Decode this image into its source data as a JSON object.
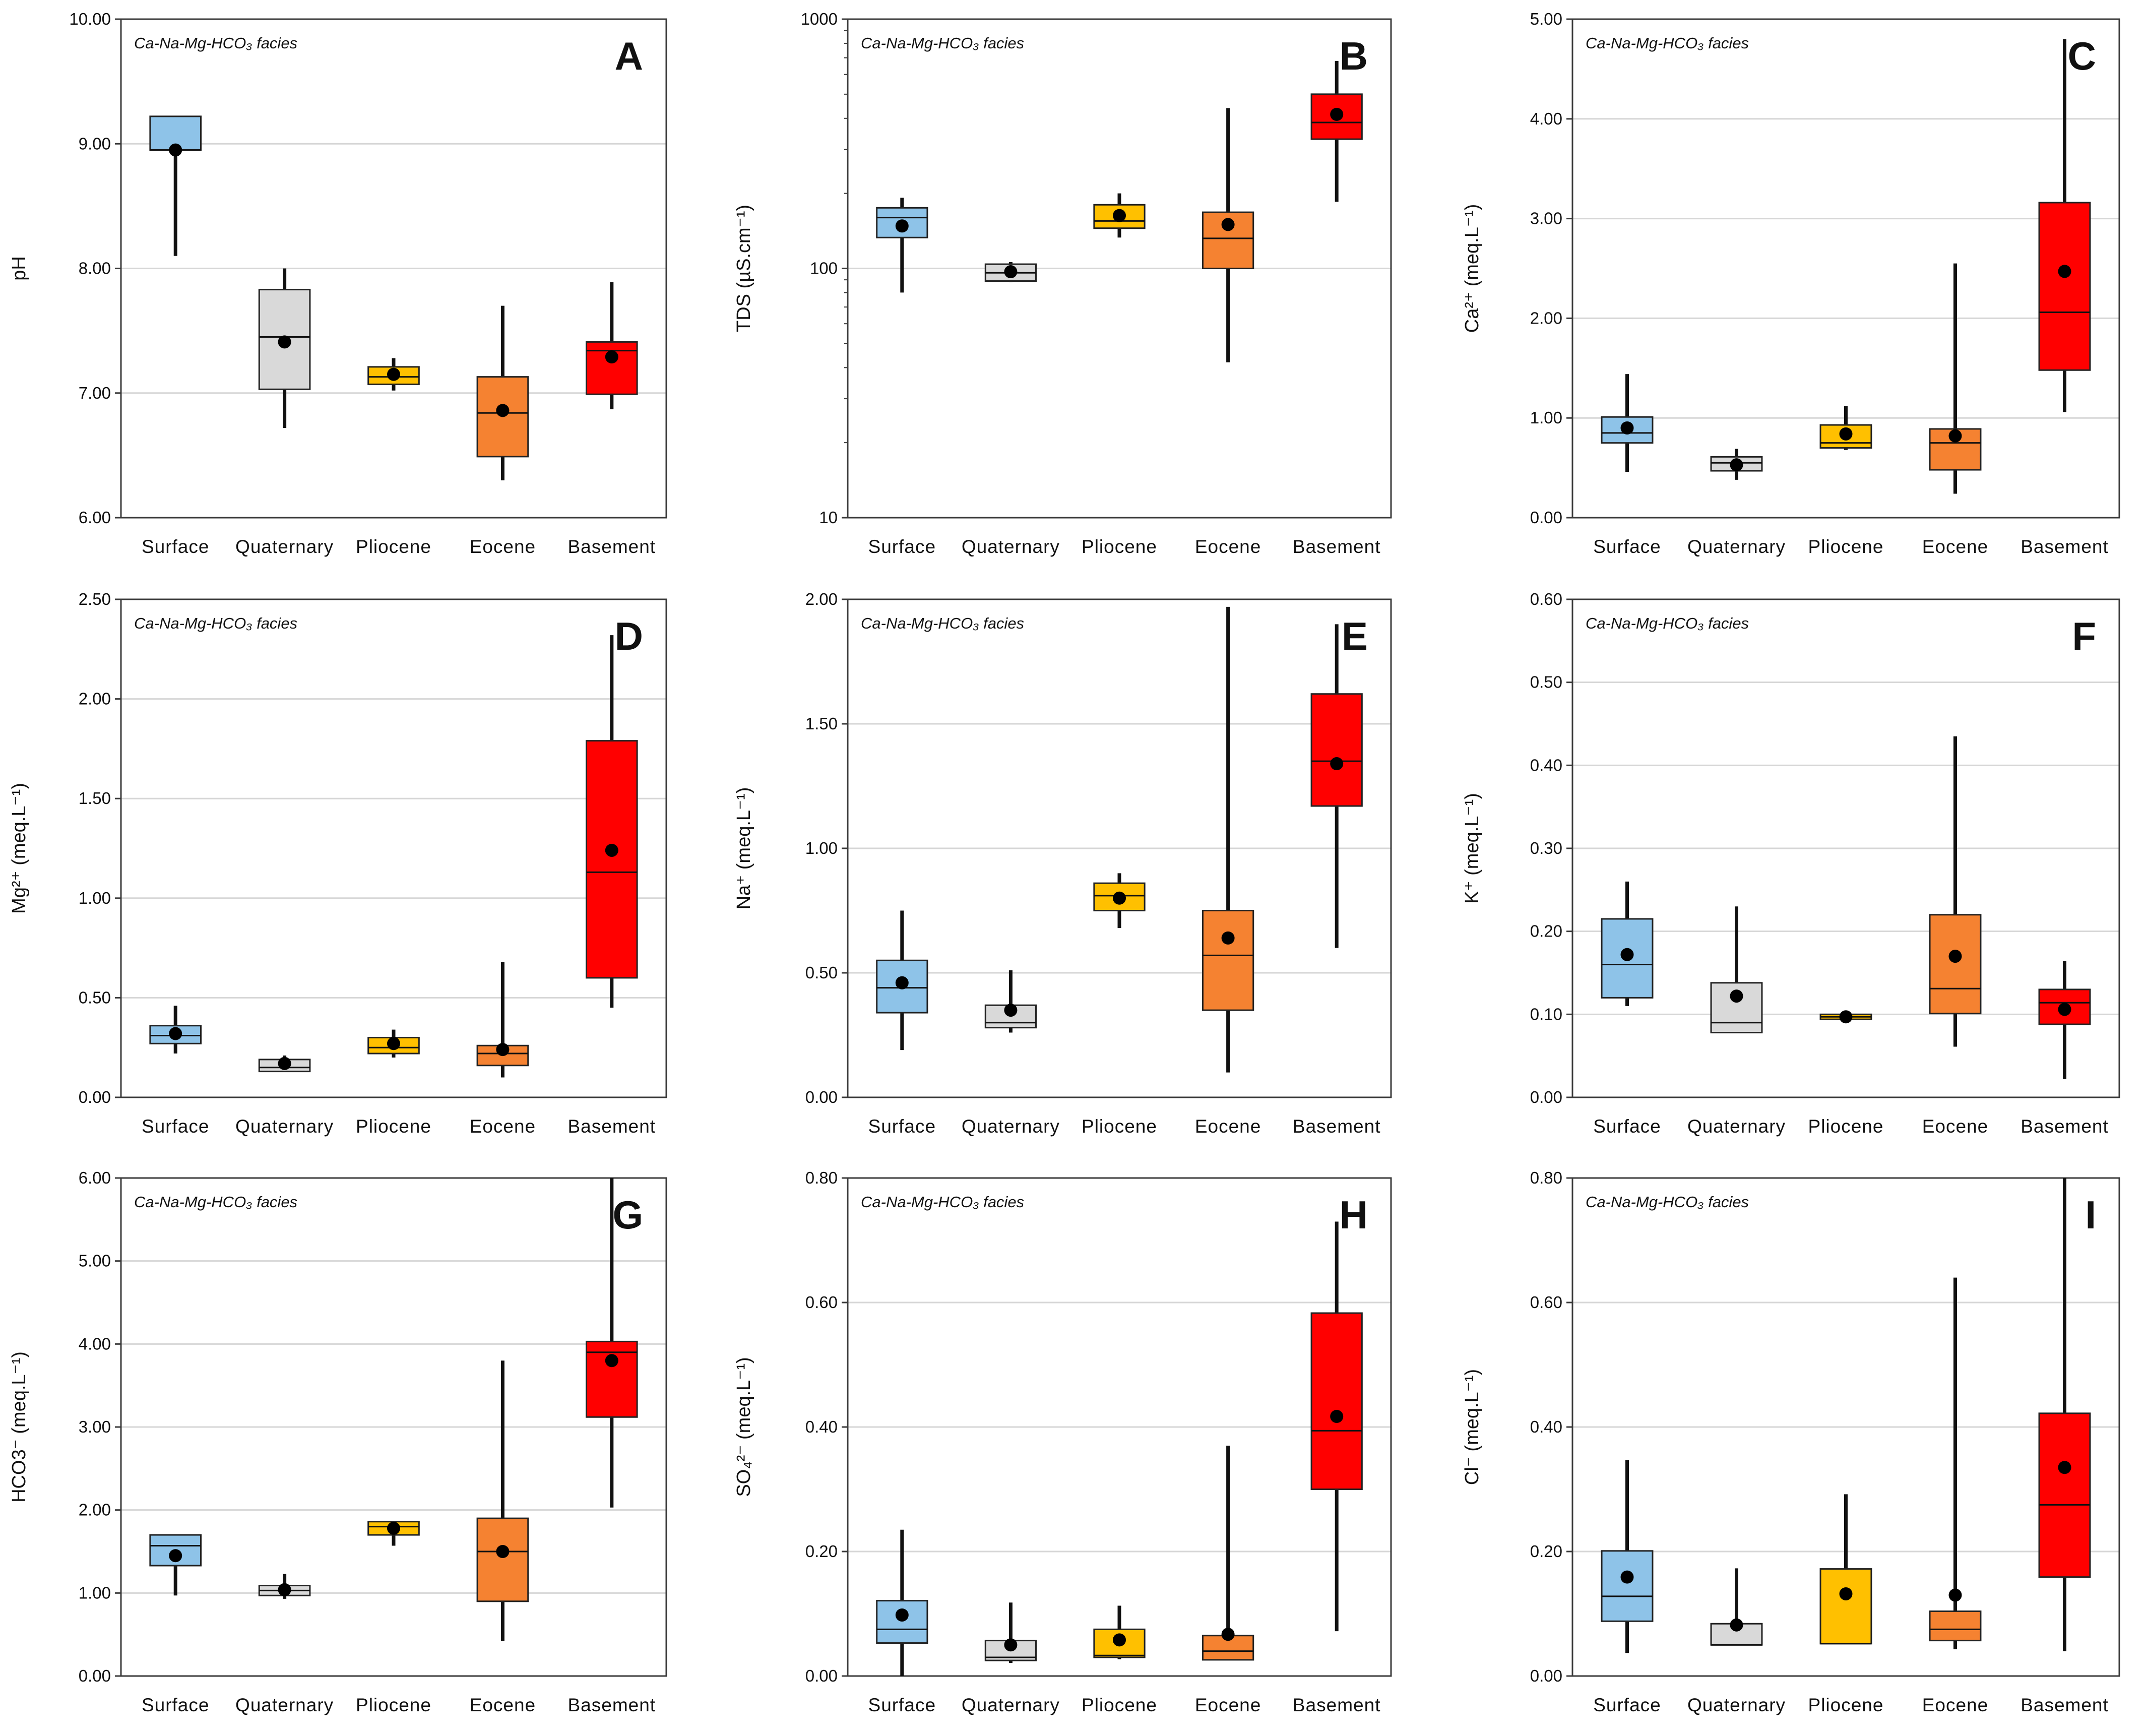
{
  "figure": {
    "categories": [
      "Surface",
      "Quaternary",
      "Pliocene",
      "Eocene",
      "Basement"
    ],
    "colors": {
      "Surface": "#8ec3e8",
      "Quaternary": "#d9d9d9",
      "Pliocene": "#ffc000",
      "Eocene": "#f58231",
      "Basement": "#ff0000"
    },
    "facies_label": "Ca-Na-Mg-HCO₃ facies"
  },
  "chart_data": [
    {
      "panel": "A",
      "type": "boxplot",
      "ylabel": "pH",
      "yscale": "linear",
      "ylim": [
        6,
        10
      ],
      "yticks": [
        6,
        7,
        8,
        9,
        10
      ],
      "minor_ticks": [],
      "ytick_labels": [
        "6.00",
        "7.00",
        "8.00",
        "9.00",
        "10.00"
      ],
      "series": [
        {
          "category": "Surface",
          "min": 8.1,
          "q1": 8.95,
          "median": 8.95,
          "q3": 9.22,
          "max": 9.22,
          "mean": 8.95
        },
        {
          "category": "Quaternary",
          "min": 6.72,
          "q1": 7.03,
          "median": 7.45,
          "q3": 7.83,
          "max": 8.0,
          "mean": 7.41
        },
        {
          "category": "Pliocene",
          "min": 7.02,
          "q1": 7.07,
          "median": 7.13,
          "q3": 7.21,
          "max": 7.28,
          "mean": 7.15
        },
        {
          "category": "Eocene",
          "min": 6.3,
          "q1": 6.49,
          "median": 6.84,
          "q3": 7.13,
          "max": 7.7,
          "mean": 6.86
        },
        {
          "category": "Basement",
          "min": 6.87,
          "q1": 6.99,
          "median": 7.34,
          "q3": 7.41,
          "max": 7.89,
          "mean": 7.29
        }
      ]
    },
    {
      "panel": "B",
      "type": "boxplot",
      "ylabel": "TDS  (µS.cm⁻¹)",
      "yscale": "log",
      "ylim": [
        10,
        1000
      ],
      "yticks": [
        10,
        100,
        1000
      ],
      "minor_ticks": [
        20,
        30,
        40,
        50,
        60,
        70,
        80,
        90,
        200,
        300,
        400,
        500,
        600,
        700,
        800,
        900
      ],
      "ytick_labels": [
        "10",
        "100",
        "1000"
      ],
      "series": [
        {
          "category": "Surface",
          "min": 80,
          "q1": 133,
          "median": 160,
          "q3": 175,
          "max": 192,
          "mean": 148
        },
        {
          "category": "Quaternary",
          "min": 88,
          "q1": 89,
          "median": 96,
          "q3": 104,
          "max": 106,
          "mean": 97
        },
        {
          "category": "Pliocene",
          "min": 133,
          "q1": 145,
          "median": 155,
          "q3": 180,
          "max": 200,
          "mean": 163
        },
        {
          "category": "Eocene",
          "min": 42,
          "q1": 100,
          "median": 132,
          "q3": 168,
          "max": 440,
          "mean": 150
        },
        {
          "category": "Basement",
          "min": 185,
          "q1": 330,
          "median": 385,
          "q3": 500,
          "max": 680,
          "mean": 415
        }
      ]
    },
    {
      "panel": "C",
      "type": "boxplot",
      "ylabel": "Ca²⁺  (meq.L⁻¹)",
      "yscale": "linear",
      "ylim": [
        0,
        5
      ],
      "yticks": [
        0,
        1,
        2,
        3,
        4,
        5
      ],
      "minor_ticks": [],
      "ytick_labels": [
        "0.00",
        "1.00",
        "2.00",
        "3.00",
        "4.00",
        "5.00"
      ],
      "series": [
        {
          "category": "Surface",
          "min": 0.46,
          "q1": 0.75,
          "median": 0.85,
          "q3": 1.01,
          "max": 1.44,
          "mean": 0.9
        },
        {
          "category": "Quaternary",
          "min": 0.38,
          "q1": 0.47,
          "median": 0.55,
          "q3": 0.61,
          "max": 0.69,
          "mean": 0.53
        },
        {
          "category": "Pliocene",
          "min": 0.68,
          "q1": 0.7,
          "median": 0.75,
          "q3": 0.93,
          "max": 1.12,
          "mean": 0.84
        },
        {
          "category": "Eocene",
          "min": 0.24,
          "q1": 0.48,
          "median": 0.75,
          "q3": 0.89,
          "max": 2.55,
          "mean": 0.82
        },
        {
          "category": "Basement",
          "min": 1.06,
          "q1": 1.48,
          "median": 2.06,
          "q3": 3.16,
          "max": 4.8,
          "mean": 2.47
        }
      ]
    },
    {
      "panel": "D",
      "type": "boxplot",
      "ylabel": "Mg²⁺  (meq.L⁻¹)",
      "yscale": "linear",
      "ylim": [
        0,
        2.5
      ],
      "yticks": [
        0,
        0.5,
        1,
        1.5,
        2,
        2.5
      ],
      "minor_ticks": [],
      "ytick_labels": [
        "0.00",
        "0.50",
        "1.00",
        "1.50",
        "2.00",
        "2.50"
      ],
      "series": [
        {
          "category": "Surface",
          "min": 0.22,
          "q1": 0.27,
          "median": 0.31,
          "q3": 0.36,
          "max": 0.46,
          "mean": 0.32
        },
        {
          "category": "Quaternary",
          "min": 0.13,
          "q1": 0.13,
          "median": 0.15,
          "q3": 0.19,
          "max": 0.21,
          "mean": 0.17
        },
        {
          "category": "Pliocene",
          "min": 0.2,
          "q1": 0.22,
          "median": 0.25,
          "q3": 0.3,
          "max": 0.34,
          "mean": 0.27
        },
        {
          "category": "Eocene",
          "min": 0.1,
          "q1": 0.16,
          "median": 0.22,
          "q3": 0.26,
          "max": 0.68,
          "mean": 0.24
        },
        {
          "category": "Basement",
          "min": 0.45,
          "q1": 0.6,
          "median": 1.13,
          "q3": 1.79,
          "max": 2.32,
          "mean": 1.24
        }
      ]
    },
    {
      "panel": "E",
      "type": "boxplot",
      "ylabel": "Na⁺  (meq.L⁻¹)",
      "yscale": "linear",
      "ylim": [
        0,
        2
      ],
      "yticks": [
        0,
        0.5,
        1,
        1.5,
        2
      ],
      "minor_ticks": [],
      "ytick_labels": [
        "0.00",
        "0.50",
        "1.00",
        "1.50",
        "2.00"
      ],
      "series": [
        {
          "category": "Surface",
          "min": 0.19,
          "q1": 0.34,
          "median": 0.44,
          "q3": 0.55,
          "max": 0.75,
          "mean": 0.46
        },
        {
          "category": "Quaternary",
          "min": 0.26,
          "q1": 0.28,
          "median": 0.3,
          "q3": 0.37,
          "max": 0.51,
          "mean": 0.35
        },
        {
          "category": "Pliocene",
          "min": 0.68,
          "q1": 0.75,
          "median": 0.81,
          "q3": 0.86,
          "max": 0.9,
          "mean": 0.8
        },
        {
          "category": "Eocene",
          "min": 0.1,
          "q1": 0.35,
          "median": 0.57,
          "q3": 0.75,
          "max": 1.97,
          "mean": 0.64
        },
        {
          "category": "Basement",
          "min": 0.6,
          "q1": 1.17,
          "median": 1.35,
          "q3": 1.62,
          "max": 1.9,
          "mean": 1.34
        }
      ]
    },
    {
      "panel": "F",
      "type": "boxplot",
      "ylabel": "K⁺  (meq.L⁻¹)",
      "yscale": "linear",
      "ylim": [
        0,
        0.6
      ],
      "yticks": [
        0,
        0.1,
        0.2,
        0.3,
        0.4,
        0.5,
        0.6
      ],
      "minor_ticks": [],
      "ytick_labels": [
        "0.00",
        "0.10",
        "0.20",
        "0.30",
        "0.40",
        "0.50",
        "0.60"
      ],
      "series": [
        {
          "category": "Surface",
          "min": 0.11,
          "q1": 0.12,
          "median": 0.16,
          "q3": 0.215,
          "max": 0.26,
          "mean": 0.172
        },
        {
          "category": "Quaternary",
          "min": 0.078,
          "q1": 0.078,
          "median": 0.09,
          "q3": 0.138,
          "max": 0.23,
          "mean": 0.122
        },
        {
          "category": "Pliocene",
          "min": 0.094,
          "q1": 0.094,
          "median": 0.097,
          "q3": 0.1,
          "max": 0.101,
          "mean": 0.097
        },
        {
          "category": "Eocene",
          "min": 0.061,
          "q1": 0.101,
          "median": 0.131,
          "q3": 0.22,
          "max": 0.435,
          "mean": 0.17
        },
        {
          "category": "Basement",
          "min": 0.022,
          "q1": 0.088,
          "median": 0.114,
          "q3": 0.13,
          "max": 0.164,
          "mean": 0.106
        }
      ]
    },
    {
      "panel": "G",
      "type": "boxplot",
      "ylabel": "HCO3⁻  (meq.L⁻¹)",
      "yscale": "linear",
      "ylim": [
        0,
        6
      ],
      "yticks": [
        0,
        1,
        2,
        3,
        4,
        5,
        6
      ],
      "minor_ticks": [],
      "ytick_labels": [
        "0.00",
        "1.00",
        "2.00",
        "3.00",
        "4.00",
        "5.00",
        "6.00"
      ],
      "series": [
        {
          "category": "Surface",
          "min": 0.97,
          "q1": 1.33,
          "median": 1.57,
          "q3": 1.7,
          "max": 1.7,
          "mean": 1.45
        },
        {
          "category": "Quaternary",
          "min": 0.93,
          "q1": 0.97,
          "median": 1.03,
          "q3": 1.09,
          "max": 1.23,
          "mean": 1.04
        },
        {
          "category": "Pliocene",
          "min": 1.57,
          "q1": 1.7,
          "median": 1.8,
          "q3": 1.86,
          "max": 1.86,
          "mean": 1.78
        },
        {
          "category": "Eocene",
          "min": 0.42,
          "q1": 0.9,
          "median": 1.5,
          "q3": 1.9,
          "max": 3.8,
          "mean": 1.5
        },
        {
          "category": "Basement",
          "min": 2.03,
          "q1": 3.12,
          "median": 3.9,
          "q3": 4.03,
          "max": 6.0,
          "mean": 3.8
        }
      ]
    },
    {
      "panel": "H",
      "type": "boxplot",
      "ylabel": "SO₄²⁻  (meq.L⁻¹)",
      "yscale": "linear",
      "ylim": [
        0,
        0.8
      ],
      "yticks": [
        0,
        0.2,
        0.4,
        0.6,
        0.8
      ],
      "minor_ticks": [],
      "ytick_labels": [
        "0.00",
        "0.20",
        "0.40",
        "0.60",
        "0.80"
      ],
      "series": [
        {
          "category": "Surface",
          "min": 0.0,
          "q1": 0.053,
          "median": 0.075,
          "q3": 0.121,
          "max": 0.235,
          "mean": 0.098
        },
        {
          "category": "Quaternary",
          "min": 0.021,
          "q1": 0.025,
          "median": 0.03,
          "q3": 0.057,
          "max": 0.118,
          "mean": 0.05
        },
        {
          "category": "Pliocene",
          "min": 0.027,
          "q1": 0.03,
          "median": 0.033,
          "q3": 0.075,
          "max": 0.113,
          "mean": 0.058
        },
        {
          "category": "Eocene",
          "min": 0.026,
          "q1": 0.026,
          "median": 0.04,
          "q3": 0.065,
          "max": 0.37,
          "mean": 0.067
        },
        {
          "category": "Basement",
          "min": 0.072,
          "q1": 0.3,
          "median": 0.394,
          "q3": 0.583,
          "max": 0.73,
          "mean": 0.417
        }
      ]
    },
    {
      "panel": "I",
      "type": "boxplot",
      "ylabel": "Cl⁻  (meq.L⁻¹)",
      "yscale": "linear",
      "ylim": [
        0,
        0.8
      ],
      "yticks": [
        0,
        0.2,
        0.4,
        0.6,
        0.8
      ],
      "minor_ticks": [],
      "ytick_labels": [
        "0.00",
        "0.20",
        "0.40",
        "0.60",
        "0.80"
      ],
      "series": [
        {
          "category": "Surface",
          "min": 0.037,
          "q1": 0.088,
          "median": 0.128,
          "q3": 0.201,
          "max": 0.347,
          "mean": 0.159
        },
        {
          "category": "Quaternary",
          "min": 0.05,
          "q1": 0.05,
          "median": 0.05,
          "q3": 0.084,
          "max": 0.173,
          "mean": 0.082
        },
        {
          "category": "Pliocene",
          "min": 0.052,
          "q1": 0.052,
          "median": 0.052,
          "q3": 0.172,
          "max": 0.292,
          "mean": 0.132
        },
        {
          "category": "Eocene",
          "min": 0.043,
          "q1": 0.057,
          "median": 0.075,
          "q3": 0.104,
          "max": 0.64,
          "mean": 0.13
        },
        {
          "category": "Basement",
          "min": 0.04,
          "q1": 0.159,
          "median": 0.275,
          "q3": 0.422,
          "max": 0.8,
          "mean": 0.335
        }
      ]
    }
  ]
}
